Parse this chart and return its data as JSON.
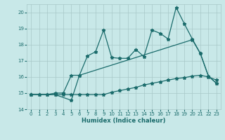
{
  "title": "",
  "xlabel": "Humidex (Indice chaleur)",
  "bg_color": "#c8e8e8",
  "line_color": "#1a6b6b",
  "grid_color": "#a8c8c8",
  "xlim": [
    -0.5,
    23.5
  ],
  "ylim": [
    14,
    20.5
  ],
  "xticks": [
    0,
    1,
    2,
    3,
    4,
    5,
    6,
    7,
    8,
    9,
    10,
    11,
    12,
    13,
    14,
    15,
    16,
    17,
    18,
    19,
    20,
    21,
    22,
    23
  ],
  "yticks": [
    14,
    15,
    16,
    17,
    18,
    19,
    20
  ],
  "line1_x": [
    0,
    1,
    2,
    3,
    4,
    5,
    6,
    7,
    8,
    9,
    10,
    11,
    12,
    13,
    14,
    15,
    16,
    17,
    18,
    19,
    20,
    21,
    22,
    23
  ],
  "line1_y": [
    14.9,
    14.9,
    14.9,
    14.9,
    14.9,
    14.9,
    14.9,
    14.9,
    14.9,
    14.9,
    15.05,
    15.15,
    15.25,
    15.35,
    15.5,
    15.6,
    15.7,
    15.8,
    15.9,
    15.95,
    16.05,
    16.1,
    16.0,
    15.8
  ],
  "line2_x": [
    0,
    1,
    2,
    3,
    4,
    5,
    6,
    7,
    8,
    9,
    10,
    11,
    12,
    13,
    14,
    15,
    16,
    17,
    18,
    19,
    20,
    21,
    22,
    23
  ],
  "line2_y": [
    14.9,
    14.9,
    14.9,
    15.0,
    15.0,
    16.1,
    16.1,
    17.3,
    17.55,
    18.9,
    17.2,
    17.15,
    17.15,
    17.7,
    17.25,
    18.9,
    18.7,
    18.35,
    20.3,
    19.3,
    18.35,
    17.45,
    16.05,
    15.6
  ],
  "line3_x": [
    0,
    3,
    5,
    6,
    20,
    21,
    22,
    23
  ],
  "line3_y": [
    14.9,
    14.9,
    14.55,
    16.1,
    18.3,
    17.45,
    16.05,
    15.6
  ],
  "marker": "*",
  "markersize": 3.5,
  "linewidth": 0.9,
  "tick_fontsize": 5,
  "label_fontsize": 6,
  "label_fontweight": "bold"
}
